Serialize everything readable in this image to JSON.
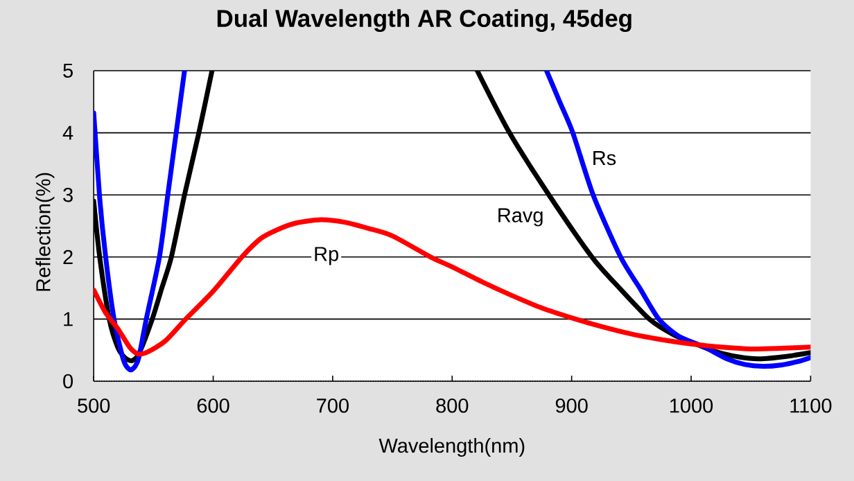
{
  "chart_data": {
    "type": "line",
    "title": "Dual Wavelength AR Coating, 45deg",
    "xlabel": "Wavelength(nm)",
    "ylabel": "Reflection(%)",
    "xlim": [
      500,
      1100
    ],
    "xticks": [
      500,
      600,
      700,
      800,
      900,
      1000,
      1100
    ],
    "ylim": [
      0,
      5
    ],
    "yticks": [
      0,
      1,
      2,
      3,
      4,
      5
    ],
    "grid": "y",
    "series": [
      {
        "name": "Ravg",
        "color": "#000000",
        "x": [
          500,
          505,
          513,
          520,
          526,
          532,
          538,
          549,
          557,
          565,
          576,
          588,
          599,
          710,
          821,
          848,
          881,
          917,
          940,
          965,
          985,
          1000,
          1020,
          1040,
          1057,
          1080,
          1100
        ],
        "values": [
          2.9,
          2.0,
          1.0,
          0.55,
          0.38,
          0.33,
          0.45,
          1.0,
          1.5,
          2.0,
          3.0,
          4.0,
          5.0,
          null,
          5.0,
          4.0,
          3.0,
          2.0,
          1.5,
          1.0,
          0.75,
          0.63,
          0.48,
          0.39,
          0.36,
          0.4,
          0.46
        ]
      },
      {
        "name": "Rs",
        "color": "#0000ff",
        "x": [
          500,
          505,
          510,
          517,
          524,
          527,
          531,
          535,
          538,
          544,
          555,
          562,
          569,
          576,
          727,
          879,
          890,
          901,
          918,
          941,
          957,
          973,
          990,
          1010,
          1030,
          1045,
          1060,
          1075,
          1090,
          1100
        ],
        "values": [
          4.32,
          2.95,
          2.0,
          1.0,
          0.4,
          0.25,
          0.18,
          0.25,
          0.4,
          1.0,
          2.0,
          3.0,
          4.0,
          5.0,
          null,
          5.0,
          4.5,
          4.0,
          3.0,
          2.0,
          1.5,
          1.0,
          0.72,
          0.56,
          0.36,
          0.27,
          0.24,
          0.26,
          0.32,
          0.38
        ]
      },
      {
        "name": "Rp",
        "color": "#ff0000",
        "x": [
          500,
          510,
          520,
          530,
          537,
          545,
          560,
          577,
          600,
          624,
          640,
          655,
          670,
          690,
          710,
          730,
          750,
          782,
          800,
          825,
          850,
          875,
          900,
          925,
          950,
          975,
          1000,
          1025,
          1050,
          1075,
          1100
        ],
        "values": [
          1.47,
          1.1,
          0.85,
          0.55,
          0.44,
          0.47,
          0.65,
          1.0,
          1.45,
          2.0,
          2.3,
          2.45,
          2.55,
          2.6,
          2.56,
          2.46,
          2.34,
          2.0,
          1.84,
          1.6,
          1.38,
          1.18,
          1.02,
          0.88,
          0.76,
          0.67,
          0.6,
          0.55,
          0.52,
          0.53,
          0.55
        ]
      }
    ]
  }
}
